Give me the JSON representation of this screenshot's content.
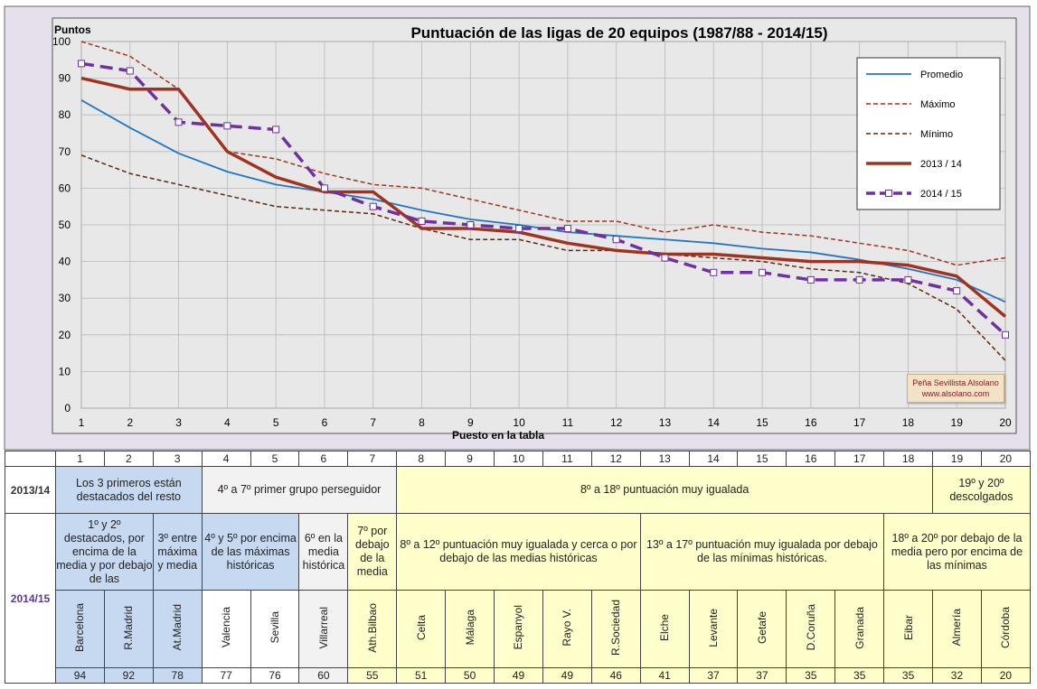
{
  "chart_data": {
    "type": "line",
    "title": "Puntuación de las ligas de 20 equipos (1987/88 - 2014/15)",
    "xlabel": "Puesto en la tabla",
    "ylabel": "Puntos",
    "xlim": [
      1,
      20
    ],
    "ylim": [
      0,
      100
    ],
    "x": [
      1,
      2,
      3,
      4,
      5,
      6,
      7,
      8,
      9,
      10,
      11,
      12,
      13,
      14,
      15,
      16,
      17,
      18,
      19,
      20
    ],
    "yticks": [
      0,
      10,
      20,
      30,
      40,
      50,
      60,
      70,
      80,
      90,
      100
    ],
    "grid": true,
    "legend": "top-right",
    "series": [
      {
        "name": "Promedio",
        "color": "#1f77c4",
        "style": "solid",
        "values": [
          84,
          76.5,
          69.5,
          64.5,
          61,
          59,
          57,
          54,
          51.5,
          50,
          48,
          47,
          46,
          45,
          43.5,
          42.5,
          40.5,
          38,
          35,
          29
        ]
      },
      {
        "name": "Máximo",
        "color": "#a0331f",
        "style": "dashed",
        "values": [
          100,
          96,
          87,
          70,
          68,
          64,
          61,
          60,
          57,
          54,
          51,
          51,
          48,
          50,
          48,
          47,
          45,
          43,
          39,
          41
        ]
      },
      {
        "name": "Mínimo",
        "color": "#5a2a10",
        "style": "dashed",
        "values": [
          69,
          64,
          61,
          58,
          55,
          54,
          53,
          49,
          46,
          46,
          43,
          43,
          42,
          41,
          40,
          38,
          37,
          34,
          27,
          13
        ]
      },
      {
        "name": "2013 / 14",
        "color": "#a0331f",
        "style": "thick",
        "values": [
          90,
          87,
          87,
          70,
          63,
          59,
          59,
          49,
          49,
          48,
          45,
          43,
          42,
          42,
          41,
          40,
          40,
          39,
          36,
          25
        ]
      },
      {
        "name": "2014 / 15",
        "color": "#7030a0",
        "style": "dashmarker",
        "values": [
          94,
          92,
          78,
          77,
          76,
          60,
          55,
          51,
          50,
          49,
          49,
          46,
          41,
          37,
          37,
          35,
          35,
          35,
          32,
          20
        ]
      }
    ]
  },
  "credit": {
    "line1": "Peña Sevillista Alsolano",
    "line2": "www.alsolano.com"
  },
  "table": {
    "positions": [
      "1",
      "2",
      "3",
      "4",
      "5",
      "6",
      "7",
      "8",
      "9",
      "10",
      "11",
      "12",
      "13",
      "14",
      "15",
      "16",
      "17",
      "18",
      "19",
      "20"
    ],
    "row1_label": "2013/14",
    "row1_groups": [
      "Los 3 primeros están destacados del resto",
      "4º a 7º primer grupo perseguidor",
      "8º a 18º puntuación muy igualada",
      "19º y 20º descolgados"
    ],
    "row2_label": "2014/15",
    "row2_groups": [
      "1º y 2º destacados, por encima de la media y por debajo de las",
      "3º entre máxima y media",
      "4º y 5º por encima de las máximas históricas",
      "6º en la media histórica",
      "7º por debajo de la media",
      "8º a 12º puntuación muy igualada y cerca o por debajo de las medias históricas",
      "13º a 17º puntuación muy igualada por debajo de las mínimas históricas.",
      "18º a 20º por debajo de la media pero por encima de las mínimas"
    ],
    "teams": [
      "Barcelona",
      "R.Madrid",
      "At.Madrid",
      "Valencia",
      "Sevilla",
      "Villarreal",
      "Ath.Bilbao",
      "Celta",
      "Málaga",
      "Espanyol",
      "Rayo V.",
      "R.Sociedad",
      "Elche",
      "Levante",
      "Getafe",
      "D.Coruña",
      "Granada",
      "Eibar",
      "Almería",
      "Córdoba"
    ],
    "points": [
      "94",
      "92",
      "78",
      "77",
      "76",
      "60",
      "55",
      "51",
      "50",
      "49",
      "49",
      "46",
      "41",
      "37",
      "37",
      "35",
      "35",
      "35",
      "32",
      "20"
    ]
  }
}
